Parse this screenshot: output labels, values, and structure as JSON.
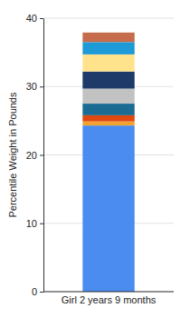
{
  "chart_data": {
    "type": "bar",
    "stacked": true,
    "grid": true,
    "y_label": "Percentile Weight in Pounds",
    "categories": [
      "Girl 2 years 9 months"
    ],
    "ylim": [
      0,
      40
    ],
    "yticks": [
      0,
      10,
      20,
      30,
      40
    ],
    "series": [
      {
        "color": "#4a8cf0",
        "values": [
          24.3
        ]
      },
      {
        "color": "#f2a22e",
        "values": [
          0.6
        ]
      },
      {
        "color": "#e0480f",
        "values": [
          0.9
        ]
      },
      {
        "color": "#1b6b93",
        "values": [
          1.7
        ]
      },
      {
        "color": "#c2c2c2",
        "values": [
          2.2
        ]
      },
      {
        "color": "#1d3a68",
        "values": [
          2.5
        ]
      },
      {
        "color": "#ffe38c",
        "values": [
          2.5
        ]
      },
      {
        "color": "#1f9ad8",
        "values": [
          1.8
        ]
      },
      {
        "color": "#c46c4c",
        "values": [
          1.4
        ]
      }
    ]
  }
}
